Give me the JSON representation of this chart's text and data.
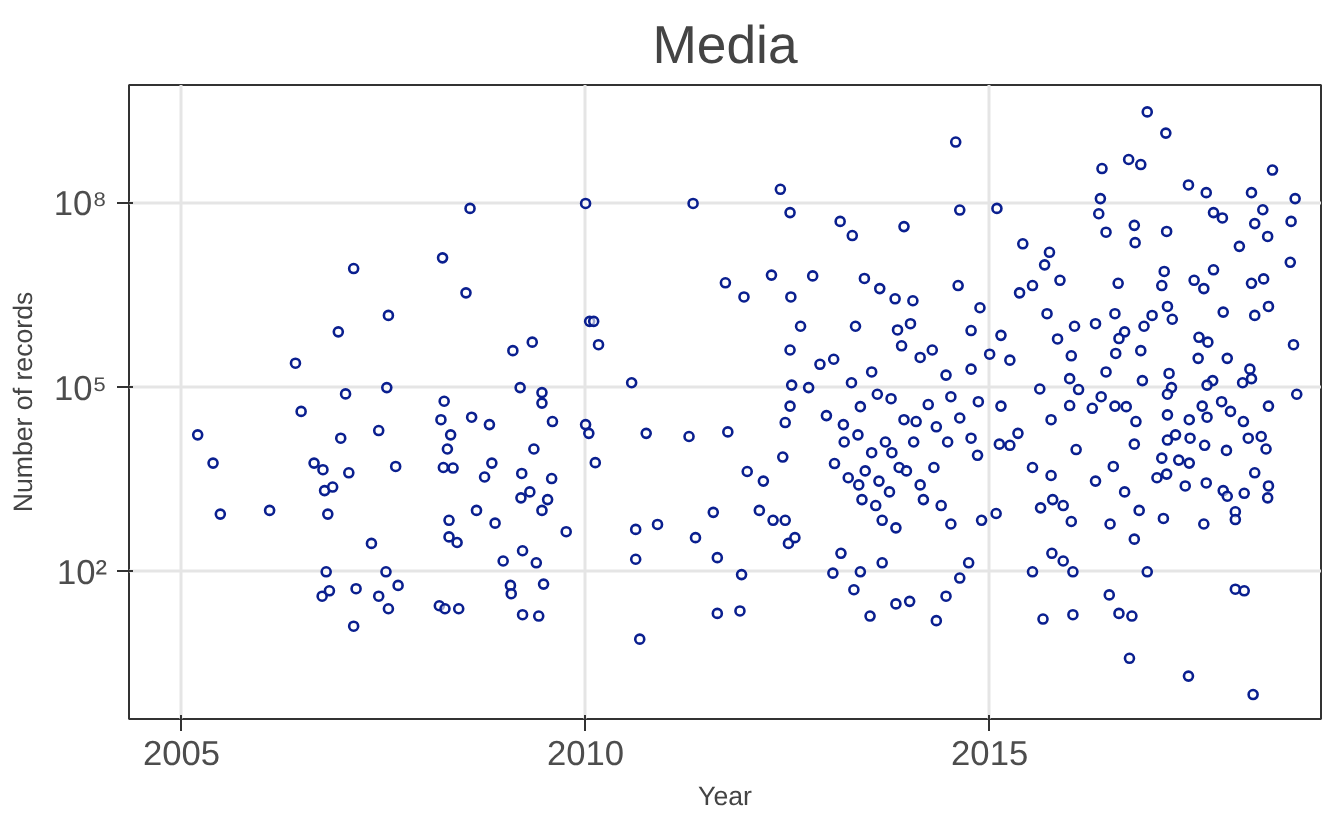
{
  "chart_data": {
    "type": "scatter",
    "title": "Media",
    "xlabel": "Year",
    "ylabel": "Number of records",
    "log": "y",
    "grid": true,
    "marker": "circle",
    "xlim": [
      2004.35,
      2019.1
    ],
    "xticks": [
      2005,
      2010,
      2015
    ],
    "ylim": [
      0.4,
      8500000000
    ],
    "yticks": [
      {
        "value": 100,
        "label": "10²"
      },
      {
        "value": 100000,
        "label": "10⁵"
      },
      {
        "value": 100000000,
        "label": "10⁸"
      }
    ],
    "series": [
      {
        "color": "#0a1f8f",
        "x": [
          2005.2,
          2005.39,
          2005.48,
          2006.09,
          2006.41,
          2006.48,
          2006.64,
          2006.75,
          2006.77,
          2006.87,
          2006.81,
          2006.94,
          2006.97,
          2007.03,
          2007.07,
          2007.13,
          2006.79,
          2006.74,
          2006.83,
          2007.16,
          2007.13,
          2007.35,
          2007.44,
          2007.54,
          2007.56,
          2007.65,
          2007.53,
          2007.44,
          2007.56,
          2007.68,
          2008.23,
          2008.57,
          2008.52,
          2008.25,
          2008.21,
          2008.33,
          2008.29,
          2008.24,
          2008.36,
          2008.59,
          2008.81,
          2008.31,
          2008.31,
          2008.41,
          2008.19,
          2008.26,
          2008.43,
          2008.65,
          2008.75,
          2008.84,
          2008.88,
          2008.98,
          2009.1,
          2009.34,
          2009.19,
          2009.46,
          2009.46,
          2009.59,
          2009.36,
          2009.21,
          2009.58,
          2009.31,
          2009.2,
          2009.53,
          2009.46,
          2009.76,
          2009.22,
          2009.39,
          2009.07,
          2009.08,
          2009.48,
          2009.22,
          2009.42,
          2010.0,
          2010.05,
          2010.1,
          2010.16,
          2010.0,
          2010.04,
          2010.12,
          2010.57,
          2010.75,
          2011.28,
          2011.33,
          2010.62,
          2010.89,
          2011.36,
          2010.62,
          2010.67,
          2011.58,
          2011.73,
          2011.96,
          2011.76,
          2012.0,
          2012.2,
          2012.15,
          2012.32,
          2012.47,
          2011.63,
          2011.93,
          2011.63,
          2011.91,
          2012.3,
          2012.41,
          2012.53,
          2012.54,
          2012.81,
          2012.66,
          2012.53,
          2012.55,
          2012.53,
          2012.47,
          2012.44,
          2012.51,
          2012.59,
          2013.15,
          2013.3,
          2013.94,
          2013.45,
          2013.64,
          2014.58,
          2014.63,
          2015.09,
          2014.61,
          2013.83,
          2014.05,
          2013.34,
          2013.86,
          2014.02,
          2014.88,
          2014.77,
          2015.14,
          2013.91,
          2012.9,
          2013.07,
          2014.14,
          2014.29,
          2014.77,
          2015.0,
          2015.25,
          2012.76,
          2012.98,
          2013.19,
          2013.29,
          2013.4,
          2013.54,
          2013.61,
          2013.78,
          2013.94,
          2014.09,
          2014.24,
          2014.46,
          2014.52,
          2014.63,
          2014.86,
          2015.14,
          2014.77,
          2015.12,
          2015.25,
          2015.35,
          2014.85,
          2013.2,
          2013.37,
          2013.54,
          2013.71,
          2013.79,
          2013.88,
          2013.46,
          2013.63,
          2013.76,
          2013.42,
          2013.59,
          2013.67,
          2013.84,
          2013.97,
          2014.14,
          2014.31,
          2014.4,
          2014.52,
          2014.18,
          2013.25,
          2013.08,
          2013.38,
          2014.06,
          2014.48,
          2014.34,
          2013.16,
          2013.4,
          2013.67,
          2013.52,
          2013.84,
          2014.01,
          2014.34,
          2014.46,
          2014.63,
          2014.74,
          2014.9,
          2015.08,
          2013.32,
          2013.06,
          2015.62,
          2015.53,
          2015.76,
          2015.63,
          2015.78,
          2016.01,
          2015.91,
          2015.53,
          2015.66,
          2015.77,
          2016.03,
          2016.03,
          2015.91,
          2015.41,
          2015.74,
          2015.68,
          2015.53,
          2015.37,
          2015.87,
          2015.71,
          2016.05,
          2015.84,
          2016.01,
          2015.99,
          2016.1,
          2015.76,
          2015.99,
          2016.07,
          2016.27,
          2016.38,
          2016.95,
          2017.18,
          2016.39,
          2016.72,
          2016.87,
          2017.46,
          2017.68,
          2016.37,
          2016.35,
          2016.44,
          2016.79,
          2016.8,
          2017.19,
          2017.77,
          2017.88,
          2018.5,
          2018.24,
          2018.38,
          2018.78,
          2018.73,
          2018.28,
          2018.44,
          2018.09,
          2018.72,
          2016.59,
          2017.16,
          2017.13,
          2017.53,
          2017.65,
          2017.77,
          2018.24,
          2018.39,
          2018.45,
          2018.28,
          2017.89,
          2017.2,
          2017.01,
          2017.26,
          2016.91,
          2016.67,
          2016.55,
          2016.31,
          2016.6,
          2016.87,
          2016.56,
          2016.44,
          2016.89,
          2017.22,
          2017.59,
          2017.7,
          2017.58,
          2017.94,
          2018.22,
          2018.76,
          2018.8,
          2018.45,
          2018.24,
          2018.13,
          2017.76,
          2017.69,
          2017.87,
          2017.25,
          2017.2,
          2016.69,
          2016.55,
          2016.81,
          2017.2,
          2017.47,
          2017.69,
          2017.63,
          2017.98,
          2018.14,
          2017.2,
          2017.3,
          2017.48,
          2017.66,
          2017.93,
          2018.2,
          2018.36,
          2018.42,
          2016.79,
          2016.53,
          2017.13,
          2017.34,
          2017.47,
          2017.19,
          2017.07,
          2017.42,
          2017.68,
          2017.89,
          2017.94,
          2018.28,
          2018.45,
          2018.44,
          2018.15,
          2018.04,
          2018.04,
          2017.65,
          2017.15,
          2016.85,
          2016.49,
          2016.31,
          2016.67,
          2016.79,
          2016.95,
          2016.48,
          2016.6,
          2016.76,
          2016.73,
          2017.46,
          2018.26,
          2018.04,
          2018.15
        ],
        "values": [
          17000,
          5900,
          870,
          1000,
          250000,
          41000,
          5900,
          4600,
          2100,
          2400,
          870,
          810000,
          15000,
          79000,
          4100,
          8700000,
          100,
          40,
          49,
          53,
          13,
          290,
          20000,
          100000,
          1500000,
          5200,
          100,
          40,
          25,
          60,
          13000000,
          83000000,
          3500000,
          60000,
          30000,
          17000,
          10000,
          5000,
          4900,
          33000,
          25000,
          690,
          370,
          300,
          28,
          25,
          25,
          1000,
          3500,
          5900,
          620,
          150,
          400000,
          550000,
          100000,
          83000,
          56000,
          28000,
          10000,
          4000,
          3300,
          2000,
          1600,
          1500,
          1000,
          450,
          220,
          140,
          60,
          44,
          63,
          20,
          19,
          100000000,
          1200000,
          1200000,
          500000,
          25000,
          18000,
          6000,
          120000,
          18000,
          16000,
          100000000,
          490,
          590,
          360,
          160,
          8,
          930,
          5100000,
          3000000,
          19000,
          4300,
          3000,
          1000,
          690,
          690,
          170,
          90,
          21,
          23,
          6800000,
          170000000,
          71000000,
          3000000,
          6600000,
          1000000,
          410000,
          110000,
          50000,
          27000,
          7400,
          290,
          360,
          51000000,
          30000000,
          42000000,
          6000000,
          4100000,
          1000000000,
          78000000,
          83000000,
          4600000,
          2800000,
          2600000,
          1000000,
          870000,
          1100000,
          2000000,
          850000,
          710000,
          480000,
          240000,
          290000,
          310000,
          410000,
          200000,
          350000,
          280000,
          100000,
          35000,
          25000,
          120000,
          49000,
          180000,
          78000,
          66000,
          30000,
          28000,
          53000,
          160000,
          71000,
          32000,
          59000,
          50000,
          15000,
          12000,
          11500,
          18000,
          7900,
          13000,
          17000,
          8700,
          13000,
          8700,
          5000,
          4400,
          3000,
          2000,
          1500,
          1200,
          690,
          520,
          4400,
          2600,
          5000,
          1200,
          600,
          1500,
          3400,
          5800,
          2600,
          13000,
          13000,
          23000,
          200,
          100,
          140,
          19,
          30,
          33,
          16,
          40,
          79,
          140,
          690,
          890,
          51,
          95,
          95000,
          5000,
          3700,
          1100,
          1500,
          660,
          1200,
          100,
          17,
          200,
          100,
          20,
          150,
          22000000,
          16000000,
          10000000,
          4600000,
          3500000,
          5600000,
          1600000,
          1000000,
          620000,
          330000,
          140000,
          93000,
          30000,
          51000,
          9800,
          46000,
          71000,
          3100000000,
          1400000000,
          370000000,
          520000000,
          430000000,
          200000000,
          150000000,
          120000000,
          68000000,
          34000000,
          44000000,
          23000000,
          35000000,
          71000000,
          58000000,
          350000000,
          150000000,
          79000000,
          120000000,
          51000000,
          47000000,
          29000000,
          20000000,
          11000000,
          5000000,
          7800000,
          4600000,
          5600000,
          4100000,
          8300000,
          5000000,
          5900000,
          2100000,
          1500000,
          1700000,
          2100000,
          1500000,
          1300000,
          1000000,
          810000,
          1600000,
          1100000,
          630000,
          400000,
          360000,
          180000,
          130000,
          170000,
          660000,
          550000,
          300000,
          300000,
          200000,
          500000,
          78000,
          50000,
          140000,
          120000,
          130000,
          110000,
          59000,
          100000,
          78000,
          49000,
          50000,
          28000,
          36000,
          30000,
          33000,
          50000,
          41000,
          28000,
          14000,
          17000,
          15000,
          11500,
          9500,
          15000,
          16000,
          10000,
          12000,
          5200,
          7100,
          6600,
          5900,
          3900,
          3400,
          2500,
          2800,
          2100,
          1700,
          4100,
          2500,
          1600,
          1900,
          950,
          710,
          600,
          740,
          1000,
          600,
          3000,
          2000,
          340,
          100,
          42,
          21,
          19,
          3.9,
          2.0,
          1.0,
          52,
          49
        ]
      }
    ]
  }
}
